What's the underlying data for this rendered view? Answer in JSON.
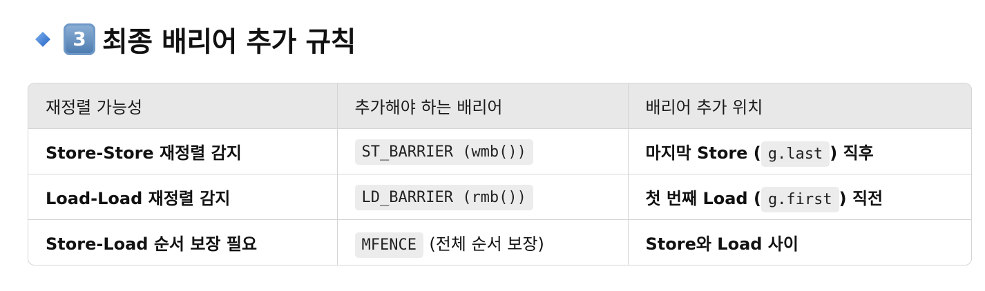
{
  "heading": {
    "diamond_icon": "small-blue-diamond",
    "keycap_number": "3",
    "title": "최종 배리어 추가 규칙"
  },
  "table": {
    "headers": [
      "재정렬 가능성",
      "추가해야 하는 배리어",
      "배리어 추가 위치"
    ],
    "rows": [
      {
        "condition": "Store-Store 재정렬 감지",
        "barrier_code": "ST_BARRIER (wmb())",
        "barrier_note": "",
        "location_before": "마지막 Store (",
        "location_code": "g.last",
        "location_after": ") 직후"
      },
      {
        "condition": "Load-Load 재정렬 감지",
        "barrier_code": "LD_BARRIER (rmb())",
        "barrier_note": "",
        "location_before": "첫 번째 Load (",
        "location_code": "g.first",
        "location_after": ") 직전"
      },
      {
        "condition": "Store-Load 순서 보장 필요",
        "barrier_code": "MFENCE",
        "barrier_note": "(전체 순서 보장)",
        "location_before": "Store와 Load 사이",
        "location_code": "",
        "location_after": ""
      }
    ]
  },
  "colors": {
    "header_bg": "#e8e8e8",
    "border": "#d5d5d5",
    "code_bg": "#ececec",
    "diamond": "#3f7fd8",
    "keycap": "#5b88bb"
  }
}
